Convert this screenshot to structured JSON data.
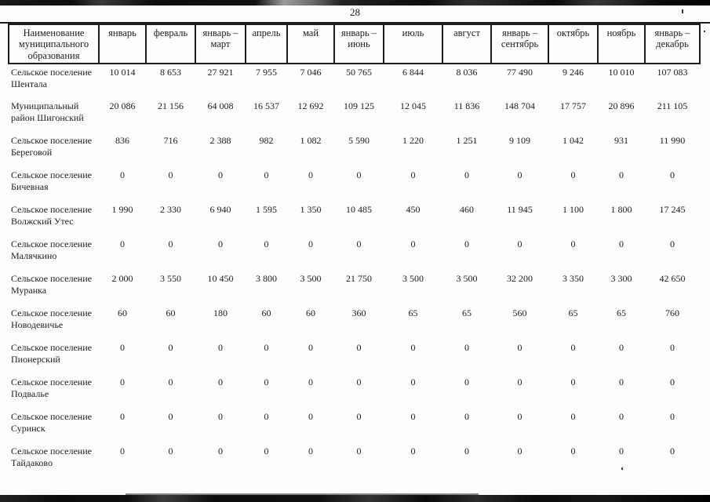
{
  "page": {
    "number": "28"
  },
  "table": {
    "name_header": "Наименование муниципального образования",
    "month_headers": [
      "январь",
      "февраль",
      "январь – март",
      "апрель",
      "май",
      "январь – июнь",
      "июль",
      "август",
      "январь – сентябрь",
      "октябрь",
      "ноябрь",
      "январь – декабрь"
    ],
    "rows": [
      {
        "name": "Сельское поселение Шентала",
        "values": [
          "10 014",
          "8 653",
          "27 921",
          "7 955",
          "7 046",
          "50 765",
          "6 844",
          "8 036",
          "77 490",
          "9 246",
          "10 010",
          "107 083"
        ]
      },
      {
        "name": "Муниципальный район Шигонский",
        "values": [
          "20 086",
          "21 156",
          "64 008",
          "16 537",
          "12 692",
          "109 125",
          "12 045",
          "11 836",
          "148 704",
          "17 757",
          "20 896",
          "211 105"
        ]
      },
      {
        "name": "Сельское поселение Береговой",
        "values": [
          "836",
          "716",
          "2 388",
          "982",
          "1 082",
          "5 590",
          "1 220",
          "1 251",
          "9 109",
          "1 042",
          "931",
          "11 990"
        ]
      },
      {
        "name": "Сельское поселение Бичевная",
        "values": [
          "0",
          "0",
          "0",
          "0",
          "0",
          "0",
          "0",
          "0",
          "0",
          "0",
          "0",
          "0"
        ]
      },
      {
        "name": "Сельское поселение Волжский Утес",
        "values": [
          "1 990",
          "2 330",
          "6 940",
          "1 595",
          "1 350",
          "10 485",
          "450",
          "460",
          "11 945",
          "1 100",
          "1 800",
          "17 245"
        ]
      },
      {
        "name": "Сельское поселение Малячкино",
        "values": [
          "0",
          "0",
          "0",
          "0",
          "0",
          "0",
          "0",
          "0",
          "0",
          "0",
          "0",
          "0"
        ]
      },
      {
        "name": "Сельское поселение Муранка",
        "values": [
          "2 000",
          "3 550",
          "10 450",
          "3 800",
          "3 500",
          "21 750",
          "3 500",
          "3 500",
          "32 200",
          "3 350",
          "3 300",
          "42 650"
        ]
      },
      {
        "name": "Сельское поселение Новодевичье",
        "values": [
          "60",
          "60",
          "180",
          "60",
          "60",
          "360",
          "65",
          "65",
          "560",
          "65",
          "65",
          "760"
        ]
      },
      {
        "name": "Сельское поселение Пионерский",
        "values": [
          "0",
          "0",
          "0",
          "0",
          "0",
          "0",
          "0",
          "0",
          "0",
          "0",
          "0",
          "0"
        ]
      },
      {
        "name": "Сельское поселение Подвалье",
        "values": [
          "0",
          "0",
          "0",
          "0",
          "0",
          "0",
          "0",
          "0",
          "0",
          "0",
          "0",
          "0"
        ]
      },
      {
        "name": "Сельское поселение Суринск",
        "values": [
          "0",
          "0",
          "0",
          "0",
          "0",
          "0",
          "0",
          "0",
          "0",
          "0",
          "0",
          "0"
        ]
      },
      {
        "name": "Сельское поселение Тайдаково",
        "values": [
          "0",
          "0",
          "0",
          "0",
          "0",
          "0",
          "0",
          "0",
          "0",
          "0",
          "0",
          "0"
        ]
      }
    ]
  }
}
